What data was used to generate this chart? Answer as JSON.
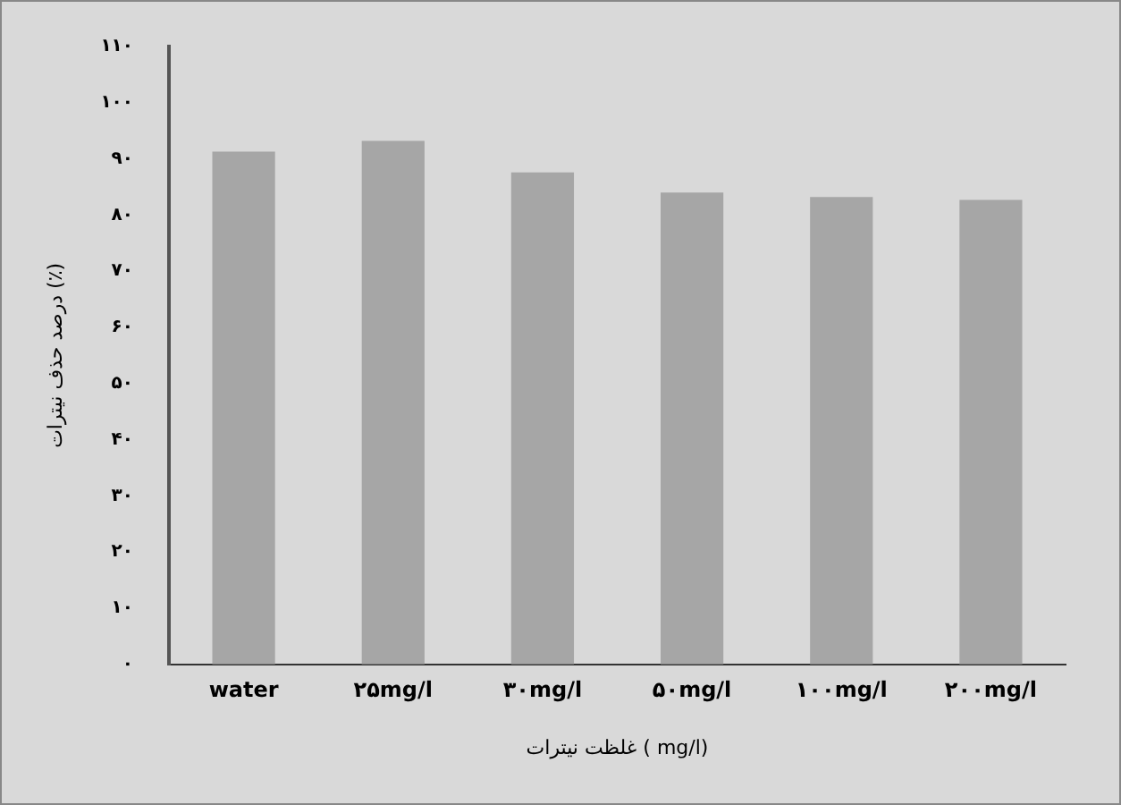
{
  "chart_data": {
    "type": "bar",
    "xlabel": "غلظت نیترات ( mg/l)",
    "ylabel": "درصد حذف نیترات (٪)",
    "categories": [
      "water",
      "۲۵mg/l",
      "۳۰mg/l",
      "۵۰mg/l",
      "۱۰۰mg/l",
      "۲۰۰mg/l"
    ],
    "values": [
      91.3,
      93.2,
      87.6,
      84,
      83.2,
      82.7
    ],
    "color": "#a6a6a6",
    "ylim": [
      0,
      110
    ],
    "yticks": [
      {
        "value": 0,
        "label": "۰"
      },
      {
        "value": 10,
        "label": "۱۰"
      },
      {
        "value": 20,
        "label": "۲۰"
      },
      {
        "value": 30,
        "label": "۳۰"
      },
      {
        "value": 40,
        "label": "۴۰"
      },
      {
        "value": 50,
        "label": "۵۰"
      },
      {
        "value": 60,
        "label": "۶۰"
      },
      {
        "value": 70,
        "label": "۷۰"
      },
      {
        "value": 80,
        "label": "۸۰"
      },
      {
        "value": 90,
        "label": "۹۰"
      },
      {
        "value": 100,
        "label": "۱۰۰"
      },
      {
        "value": 110,
        "label": "۱۱۰"
      }
    ],
    "grid": false,
    "legend": false
  }
}
